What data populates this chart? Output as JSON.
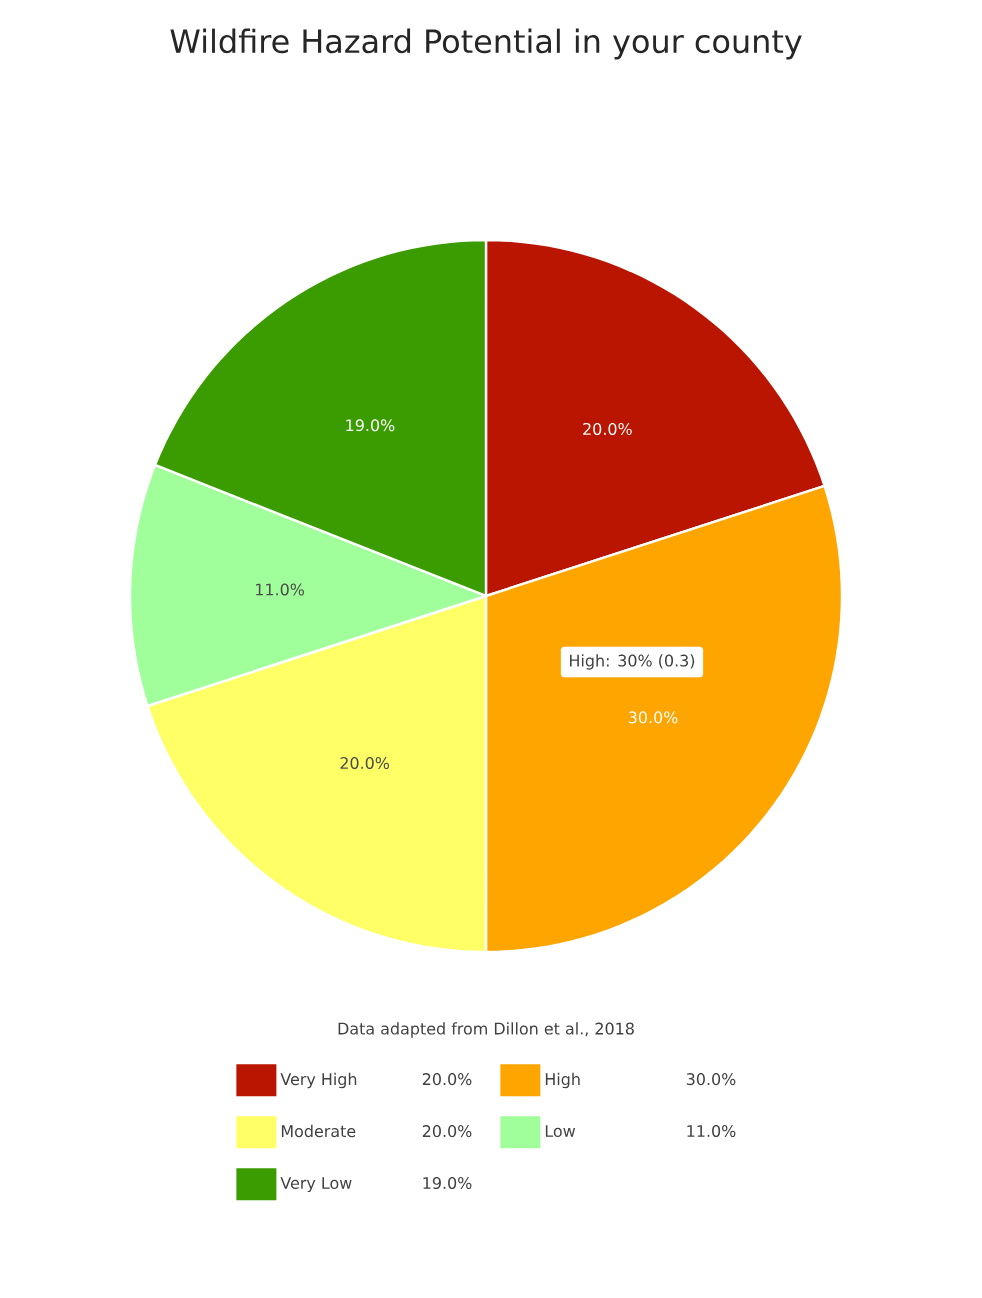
{
  "chart_data": {
    "type": "pie",
    "title": "Wildfire Hazard Potential in your county",
    "categories": [
      "Very High",
      "High",
      "Moderate",
      "Low",
      "Very Low"
    ],
    "values": [
      20,
      30,
      20,
      11,
      19
    ],
    "value_labels": [
      "20.0%",
      "30.0%",
      "20.0%",
      "11.0%",
      "19.0%"
    ],
    "colors": [
      "#b91500",
      "#ffa500",
      "#ffff66",
      "#a0ff9a",
      "#3a9c00"
    ],
    "legend": "bottom",
    "annotations": [
      "Data adapted from Dillon et al., 2018",
      "High: 30% (0.3)"
    ]
  }
}
